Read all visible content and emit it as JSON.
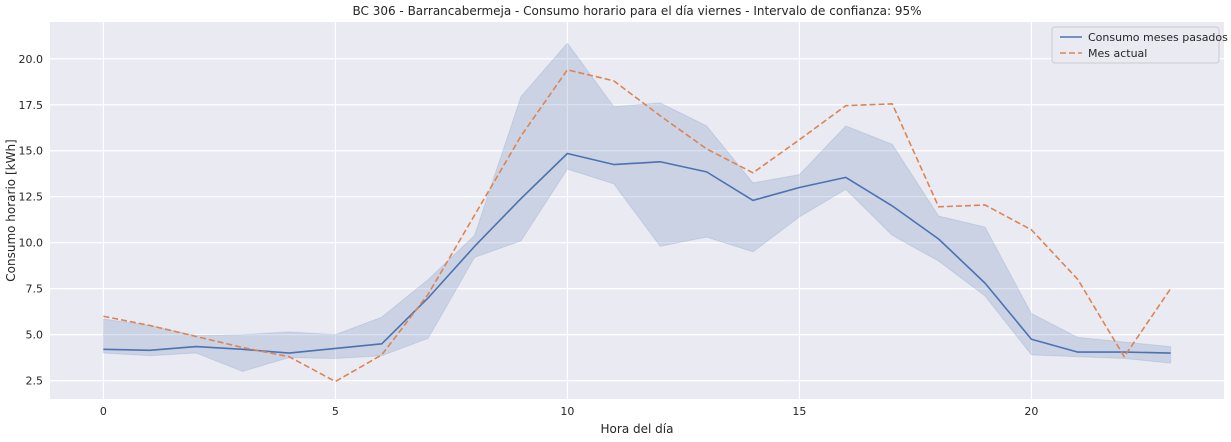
{
  "chart_data": {
    "type": "line",
    "title": "BC 306 - Barrancabermeja - Consumo horario para el día viernes - Intervalo de confianza: 95%",
    "xlabel": "Hora del día",
    "ylabel": "Consumo horario [kWh]",
    "xlim": [
      -1.15,
      24.15
    ],
    "ylim": [
      1.5,
      22.0
    ],
    "xticks": [
      0,
      5,
      10,
      15,
      20
    ],
    "yticks": [
      2.5,
      5.0,
      7.5,
      10.0,
      12.5,
      15.0,
      17.5,
      20.0
    ],
    "grid": true,
    "legend_position": "top-right",
    "x": [
      0,
      1,
      2,
      3,
      4,
      5,
      6,
      7,
      8,
      9,
      10,
      11,
      12,
      13,
      14,
      15,
      16,
      17,
      18,
      19,
      20,
      21,
      22,
      23
    ],
    "series": [
      {
        "name": "Consumo meses pasados",
        "color": "#4c72b0",
        "style": "solid",
        "values": [
          4.2,
          4.15,
          4.35,
          4.2,
          4.0,
          4.25,
          4.5,
          7.0,
          9.8,
          12.4,
          14.85,
          14.25,
          14.4,
          13.85,
          12.3,
          13.0,
          13.55,
          12.0,
          10.2,
          7.8,
          4.75,
          4.05,
          4.05,
          4.0
        ],
        "ci_lower": [
          4.0,
          3.85,
          4.0,
          3.0,
          3.75,
          3.7,
          3.85,
          4.8,
          9.2,
          10.1,
          14.0,
          13.2,
          9.8,
          10.3,
          9.5,
          11.4,
          12.9,
          10.4,
          9.0,
          7.1,
          3.9,
          3.8,
          3.7,
          3.45
        ],
        "ci_upper": [
          5.85,
          5.5,
          4.95,
          5.0,
          5.15,
          5.0,
          5.95,
          8.0,
          10.4,
          17.95,
          20.85,
          17.4,
          17.6,
          16.35,
          13.25,
          13.7,
          16.35,
          15.35,
          11.45,
          10.85,
          6.15,
          4.85,
          4.6,
          4.35
        ]
      },
      {
        "name": "Mes actual",
        "color": "#dd8452",
        "style": "dashed",
        "values": [
          6.0,
          5.5,
          4.9,
          4.3,
          3.8,
          2.45,
          3.9,
          7.2,
          11.5,
          15.8,
          19.4,
          18.8,
          16.9,
          15.1,
          13.8,
          15.6,
          17.45,
          17.55,
          11.95,
          12.05,
          10.7,
          8.0,
          3.8,
          7.5
        ]
      }
    ]
  }
}
